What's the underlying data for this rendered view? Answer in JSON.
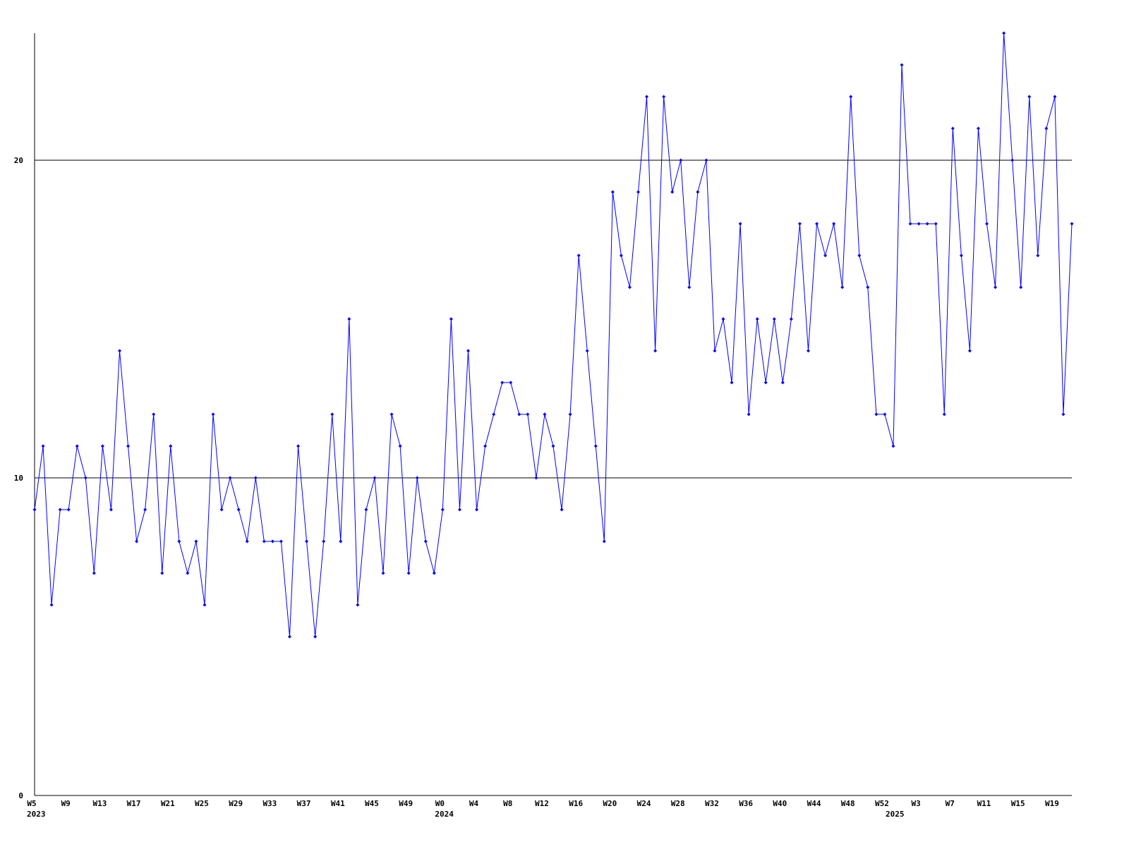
{
  "chart_data": {
    "type": "line",
    "categories": [
      "W5",
      null,
      null,
      null,
      "W9",
      null,
      null,
      null,
      "W13",
      null,
      null,
      null,
      "W17",
      null,
      null,
      null,
      "W21",
      null,
      null,
      null,
      "W25",
      null,
      null,
      null,
      "W29",
      null,
      null,
      null,
      "W33",
      null,
      null,
      null,
      "W37",
      null,
      null,
      null,
      "W41",
      null,
      null,
      null,
      "W45",
      null,
      null,
      null,
      "W49",
      null,
      null,
      null,
      "W0",
      null,
      null,
      null,
      "W4",
      null,
      null,
      null,
      "W8",
      null,
      null,
      null,
      "W12",
      null,
      null,
      null,
      "W16",
      null,
      null,
      null,
      "W20",
      null,
      null,
      null,
      "W24",
      null,
      null,
      null,
      "W28",
      null,
      null,
      null,
      "W32",
      null,
      null,
      null,
      "W36",
      null,
      null,
      null,
      "W40",
      null,
      null,
      null,
      "W44",
      null,
      null,
      null,
      "W48",
      null,
      null,
      null,
      "W52",
      null,
      null,
      null,
      "W3",
      null,
      null,
      null,
      "W7",
      null,
      null,
      null,
      "W11",
      null,
      null,
      null,
      "W15",
      null,
      null,
      null,
      "W19",
      null,
      null
    ],
    "category_years": [
      "2023",
      null,
      null,
      null,
      null,
      null,
      null,
      null,
      null,
      null,
      null,
      null,
      null,
      null,
      null,
      null,
      null,
      null,
      null,
      null,
      null,
      null,
      null,
      null,
      null,
      null,
      null,
      null,
      null,
      null,
      null,
      null,
      null,
      null,
      null,
      null,
      null,
      null,
      null,
      null,
      null,
      null,
      null,
      null,
      null,
      null,
      null,
      null,
      "2024",
      null,
      null,
      null,
      null,
      null,
      null,
      null,
      null,
      null,
      null,
      null,
      null,
      null,
      null,
      null,
      null,
      null,
      null,
      null,
      null,
      null,
      null,
      null,
      null,
      null,
      null,
      null,
      null,
      null,
      null,
      null,
      null,
      null,
      null,
      null,
      null,
      null,
      null,
      null,
      null,
      null,
      null,
      null,
      null,
      null,
      null,
      null,
      null,
      null,
      null,
      null,
      null,
      "2025",
      null,
      null,
      null,
      null,
      null,
      null,
      null,
      null,
      null,
      null,
      null,
      null,
      null,
      null,
      null,
      null,
      null,
      null,
      null,
      null,
      null
    ],
    "series": [
      {
        "color": "#0000ff",
        "values": [
          9,
          11,
          6,
          9,
          9,
          11,
          10,
          7,
          11,
          9,
          14,
          11,
          8,
          9,
          12,
          7,
          11,
          8,
          7,
          8,
          6,
          12,
          9,
          10,
          9,
          8,
          10,
          8,
          8,
          8,
          5,
          11,
          8,
          5,
          8,
          12,
          8,
          15,
          6,
          9,
          10,
          7,
          12,
          11,
          7,
          10,
          8,
          7,
          9,
          15,
          9,
          14,
          9,
          11,
          12,
          13,
          13,
          12,
          12,
          10,
          12,
          11,
          9,
          12,
          17,
          14,
          11,
          8,
          19,
          17,
          16,
          19,
          22,
          14,
          22,
          19,
          20,
          16,
          19,
          20,
          14,
          15,
          13,
          18,
          12,
          15,
          13,
          15,
          13,
          15,
          18,
          14,
          18,
          17,
          18,
          16,
          22,
          17,
          16,
          12,
          12,
          11,
          23,
          18,
          18,
          18,
          18,
          12,
          21,
          17,
          14,
          21,
          18,
          16,
          24,
          20,
          16,
          22,
          17,
          21,
          22,
          12,
          18
        ]
      }
    ],
    "ylim": [
      0,
      24
    ],
    "yticks": [
      0,
      10,
      20
    ],
    "grid": true
  }
}
